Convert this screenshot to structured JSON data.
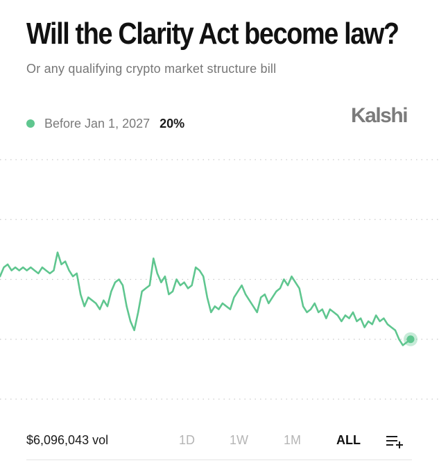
{
  "header": {
    "title": "Will the Clarity Act become law?",
    "subtitle": "Or any qualifying crypto market structure bill",
    "brand": "Kalshi"
  },
  "legend": {
    "label": "Before Jan 1, 2027",
    "value": "20%",
    "color": "#5fc68f"
  },
  "footer": {
    "volume": "$6,096,043 vol",
    "ranges": [
      "1D",
      "1W",
      "1M",
      "ALL"
    ],
    "active_range": "ALL",
    "menu_icon": "add-to-list-icon"
  },
  "chart_data": {
    "type": "line",
    "grid": true,
    "ylim": [
      0,
      80
    ],
    "series": [
      {
        "color": "#5fc68f",
        "values": [
          41,
          44,
          45,
          43,
          44,
          43,
          44,
          43,
          44,
          43,
          42,
          44,
          43,
          42,
          43,
          49,
          45,
          46,
          43,
          41,
          42,
          35,
          31,
          34,
          33,
          32,
          30,
          33,
          31,
          36,
          39,
          40,
          38,
          31,
          26,
          23,
          29,
          36,
          37,
          38,
          47,
          42,
          39,
          41,
          35,
          36,
          40,
          38,
          39,
          37,
          38,
          44,
          43,
          41,
          34,
          29,
          31,
          30,
          32,
          31,
          30,
          34,
          36,
          38,
          35,
          33,
          31,
          29,
          34,
          35,
          32,
          34,
          36,
          37,
          40,
          38,
          41,
          39,
          37,
          31,
          29,
          30,
          32,
          29,
          30,
          27,
          30,
          29,
          28,
          26,
          28,
          27,
          29,
          26,
          27,
          24,
          26,
          25,
          28,
          26,
          27,
          25,
          24,
          23,
          20,
          18,
          19,
          20
        ]
      }
    ]
  }
}
